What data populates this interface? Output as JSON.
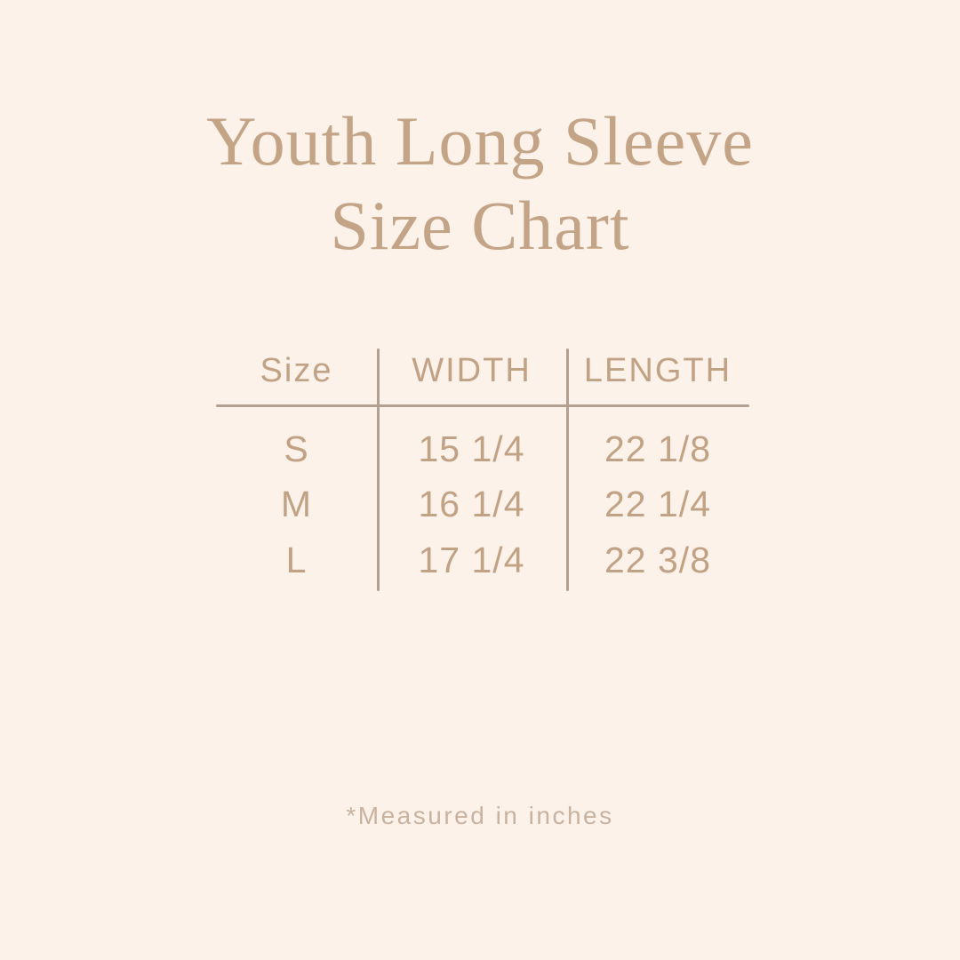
{
  "colors": {
    "background": "#fcf2e9",
    "title": "#c4a486",
    "table_text": "#c2a285",
    "rule_line": "#b2a192",
    "footnote": "#c9b29f"
  },
  "title": {
    "line1": "Youth Long Sleeve",
    "line2": "Size Chart"
  },
  "table": {
    "headers": [
      "Size",
      "WIDTH",
      "LENGTH"
    ],
    "rows": [
      {
        "size": "S",
        "width": "15 1/4",
        "length": "22 1/8"
      },
      {
        "size": "M",
        "width": "16 1/4",
        "length": "22 1/4"
      },
      {
        "size": "L",
        "width": "17 1/4",
        "length": "22 3/8"
      }
    ]
  },
  "footnote": "*Measured in inches",
  "chart_data": {
    "type": "table",
    "title": "Youth Long Sleeve Size Chart",
    "columns": [
      "Size",
      "WIDTH",
      "LENGTH"
    ],
    "rows": [
      [
        "S",
        "15 1/4",
        "22 1/8"
      ],
      [
        "M",
        "16 1/4",
        "22 1/4"
      ],
      [
        "L",
        "17 1/4",
        "22 3/8"
      ]
    ],
    "units": "inches",
    "note": "*Measured in inches"
  }
}
